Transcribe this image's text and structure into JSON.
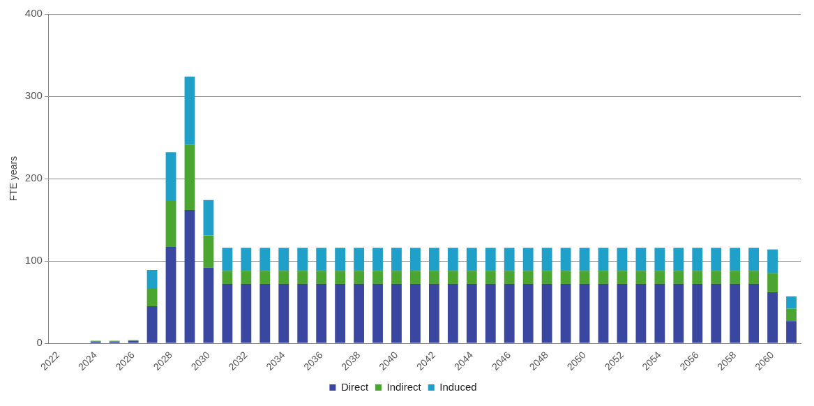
{
  "chart_data": {
    "type": "bar",
    "stacked": true,
    "ylabel": "FTE years",
    "categories": [
      "2022",
      null,
      "2024",
      null,
      "2026",
      null,
      "2028",
      null,
      "2030",
      null,
      "2032",
      null,
      "2034",
      null,
      "2036",
      null,
      "2038",
      null,
      "2040",
      null,
      "2042",
      null,
      "2044",
      null,
      "2046",
      null,
      "2048",
      null,
      "2050",
      null,
      "2052",
      null,
      "2054",
      null,
      "2056",
      null,
      "2058",
      null,
      "2060",
      null
    ],
    "series": [
      {
        "name": "Direct",
        "color": "#3a47a0",
        "values": [
          0,
          0,
          2,
          2,
          3,
          45,
          117,
          162,
          92,
          72,
          72,
          72,
          72,
          72,
          72,
          72,
          72,
          72,
          72,
          72,
          72,
          72,
          72,
          72,
          72,
          72,
          72,
          72,
          72,
          72,
          72,
          72,
          72,
          72,
          72,
          72,
          72,
          72,
          62,
          27
        ]
      },
      {
        "name": "Indirect",
        "color": "#4aa630",
        "values": [
          0,
          0,
          1,
          1,
          1,
          22,
          56,
          79,
          39,
          16,
          16,
          16,
          16,
          16,
          16,
          16,
          16,
          16,
          16,
          16,
          16,
          16,
          16,
          16,
          16,
          16,
          16,
          16,
          16,
          16,
          16,
          16,
          16,
          16,
          16,
          16,
          16,
          16,
          23,
          15
        ]
      },
      {
        "name": "Induced",
        "color": "#1ea0c8",
        "values": [
          0,
          0,
          0,
          0,
          0,
          22,
          59,
          83,
          43,
          28,
          28,
          28,
          28,
          28,
          28,
          28,
          28,
          28,
          28,
          28,
          28,
          28,
          28,
          28,
          28,
          28,
          28,
          28,
          28,
          28,
          28,
          28,
          28,
          28,
          28,
          28,
          28,
          28,
          29,
          15
        ]
      }
    ],
    "ylim": [
      0,
      400
    ],
    "yticks": [
      0,
      100,
      200,
      300,
      400
    ],
    "grid": "y",
    "legend": "bottom"
  }
}
